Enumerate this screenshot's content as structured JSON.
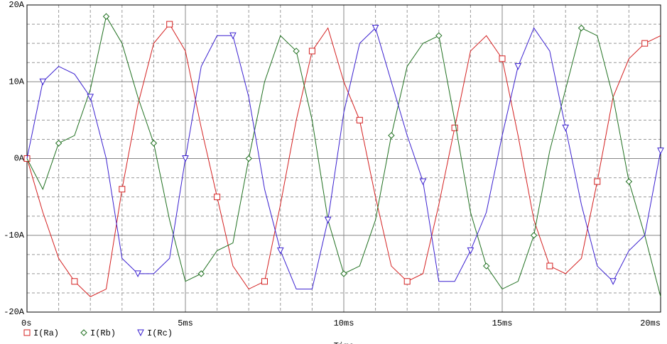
{
  "chart_data": {
    "type": "line",
    "x_label": "Time",
    "x": [
      0,
      0.5,
      1,
      1.5,
      2,
      2.5,
      3,
      3.5,
      4,
      4.5,
      5,
      5.5,
      6,
      6.5,
      7,
      7.5,
      8,
      8.5,
      9,
      9.5,
      10,
      10.5,
      11,
      11.5,
      12,
      12.5,
      13,
      13.5,
      14,
      14.5,
      15,
      15.5,
      16,
      16.5,
      17,
      17.5,
      18,
      18.5,
      19,
      19.5,
      20
    ],
    "series": [
      {
        "name": "I(Ra)",
        "color": "#d42020",
        "marker": "square",
        "values": [
          0,
          -7,
          -13,
          -16,
          -18,
          -17,
          -4,
          7,
          15,
          17.5,
          14,
          4,
          -5,
          -14,
          -17,
          -16,
          -6,
          5,
          14,
          17,
          10,
          5,
          -5,
          -14,
          -16,
          -15,
          -6,
          4,
          14,
          16,
          13,
          3,
          -8,
          -14,
          -15,
          -13,
          -3,
          8,
          13,
          15,
          16
        ]
      },
      {
        "name": "I(Rb)",
        "color": "#207020",
        "marker": "diamond",
        "values": [
          0,
          -4,
          2,
          3,
          9,
          18.5,
          15,
          8,
          2,
          -8,
          -16,
          -15,
          -12,
          -11,
          0,
          10,
          16,
          14,
          5,
          -8,
          -15,
          -14,
          -8,
          3,
          12,
          15,
          16,
          5,
          -7,
          -14,
          -17,
          -16,
          -10,
          1,
          9,
          17,
          16,
          8,
          -3,
          -10,
          -18
        ]
      },
      {
        "name": "I(Rc)",
        "color": "#3a20d0",
        "marker": "triangle",
        "values": [
          0,
          10,
          12,
          11,
          8,
          0,
          -13,
          -15,
          -15,
          -13,
          0,
          12,
          16,
          16,
          8,
          -4,
          -12,
          -17,
          -17,
          -8,
          6,
          15,
          17,
          10,
          3,
          -3,
          -16,
          -16,
          -12,
          -7,
          3,
          12,
          17,
          14,
          4,
          -6,
          -14,
          -16,
          -12,
          -10,
          1
        ]
      }
    ],
    "xlim": [
      0,
      20
    ],
    "xticks": [
      {
        "value": 0,
        "label": "0s"
      },
      {
        "value": 5,
        "label": "5ms"
      },
      {
        "value": 10,
        "label": "10ms"
      },
      {
        "value": 15,
        "label": "15ms"
      },
      {
        "value": 20,
        "label": "20ms"
      }
    ],
    "ylim": [
      -20,
      20
    ],
    "yticks": [
      {
        "value": -20,
        "label": "-20A"
      },
      {
        "value": -10,
        "label": "-10A"
      },
      {
        "value": 0,
        "label": "0A"
      },
      {
        "value": 10,
        "label": "10A"
      },
      {
        "value": 20,
        "label": "20A"
      }
    ],
    "grid": true
  }
}
